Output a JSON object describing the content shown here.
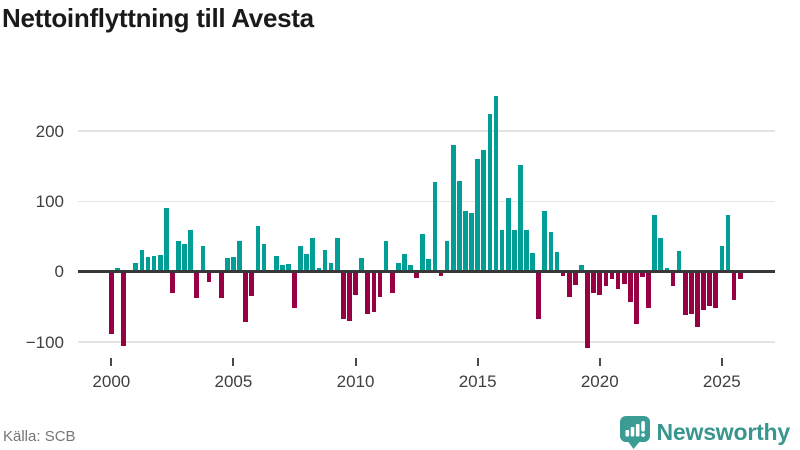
{
  "title": "Nettoinflyttning till Avesta",
  "source": "Källa: SCB",
  "brand": {
    "name": "Newsworthy",
    "icon": "newsworthy-pin-barchart-icon",
    "text_color": "#38968e",
    "icon_color": "#3a9d95"
  },
  "colors": {
    "positive_bar": "#019e96",
    "negative_bar": "#970042",
    "gridline": "#e4e4e4",
    "zero_line": "#383838",
    "title_text": "#1a1a1a",
    "axis_text": "#3f3f3f",
    "source_text": "#767676"
  },
  "chart_data": {
    "type": "bar",
    "title": "Nettoinflyttning till Avesta",
    "xlabel": "",
    "ylabel": "",
    "frequency": "quarterly",
    "x_start": "2000 Q1",
    "x_end": "2025 Q4",
    "x_tick_labels": [
      "2000",
      "2005",
      "2010",
      "2015",
      "2020",
      "2025"
    ],
    "x_tick_quarter_index": [
      0,
      20,
      40,
      60,
      80,
      100
    ],
    "y_ticks": [
      -100,
      0,
      100,
      200
    ],
    "ylim": [
      -130,
      270
    ],
    "grid": "horizontal",
    "legend": "none",
    "values": [
      -89,
      5,
      -106,
      0,
      13,
      31,
      21,
      22,
      24,
      91,
      -31,
      43,
      40,
      59,
      -38,
      37,
      -14,
      0,
      -37,
      19,
      21,
      43,
      -72,
      -35,
      65,
      39,
      0,
      22,
      10,
      11,
      -52,
      37,
      25,
      48,
      5,
      31,
      12,
      48,
      -67,
      -70,
      -33,
      19,
      -60,
      -57,
      -36,
      43,
      -31,
      12,
      25,
      10,
      -9,
      54,
      18,
      127,
      -6,
      43,
      180,
      129,
      86,
      83,
      161,
      173,
      225,
      250,
      59,
      105,
      60,
      152,
      59,
      27,
      -67,
      87,
      56,
      28,
      -6,
      -36,
      -19,
      10,
      -108,
      -31,
      -33,
      -20,
      -11,
      -24,
      -17,
      -43,
      -74,
      -7,
      -52,
      81,
      48,
      5,
      -20,
      29,
      -62,
      -60,
      -78,
      -55,
      -49,
      -52,
      36,
      81,
      -40,
      -11
    ]
  }
}
